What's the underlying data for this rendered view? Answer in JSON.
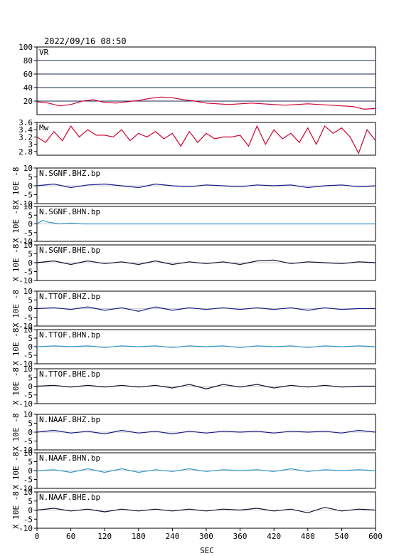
{
  "header": {
    "timestamp": "2022/09/16 08:50"
  },
  "chart_data": [
    {
      "type": "line",
      "panel_label": "VR",
      "ylim": [
        0,
        100
      ],
      "yticks": [
        20,
        40,
        60,
        80,
        100
      ],
      "grid_y": true,
      "color": "#cc0033",
      "x": [
        0,
        20,
        40,
        60,
        80,
        100,
        120,
        140,
        160,
        180,
        200,
        220,
        240,
        260,
        280,
        300,
        320,
        340,
        360,
        380,
        400,
        420,
        440,
        460,
        480,
        500,
        520,
        540,
        560,
        580,
        600
      ],
      "values": [
        19,
        17,
        13,
        15,
        20,
        22,
        18,
        17,
        19,
        21,
        24,
        26,
        25,
        22,
        20,
        17,
        16,
        15,
        16,
        17,
        16,
        15,
        14,
        15,
        16,
        15,
        14,
        13,
        12,
        8,
        9
      ]
    },
    {
      "type": "line",
      "panel_label": "Mw",
      "ylim": [
        2.7,
        3.6
      ],
      "yticks": [
        2.8,
        3.0,
        3.2,
        3.4,
        3.6
      ],
      "color": "#cc0033",
      "x": [
        0,
        15,
        30,
        45,
        60,
        75,
        90,
        105,
        120,
        135,
        150,
        165,
        180,
        195,
        210,
        225,
        240,
        255,
        270,
        285,
        300,
        315,
        330,
        345,
        360,
        375,
        390,
        405,
        420,
        435,
        450,
        465,
        480,
        495,
        510,
        525,
        540,
        555,
        570,
        585,
        600
      ],
      "values": [
        3.2,
        3.05,
        3.35,
        3.1,
        3.5,
        3.2,
        3.4,
        3.25,
        3.25,
        3.2,
        3.4,
        3.1,
        3.3,
        3.2,
        3.35,
        3.15,
        3.3,
        2.95,
        3.35,
        3.05,
        3.3,
        3.15,
        3.2,
        3.2,
        3.25,
        2.95,
        3.5,
        3.0,
        3.4,
        3.15,
        3.3,
        3.05,
        3.45,
        3.0,
        3.5,
        3.3,
        3.45,
        3.2,
        2.75,
        3.4,
        3.1
      ]
    },
    {
      "type": "line",
      "panel_label": "N.SGNF.BHZ.bp",
      "ylim": [
        -10,
        10
      ],
      "yticks": [
        -10,
        -5,
        0,
        5,
        10
      ],
      "color": "#1a1a8c",
      "x": [
        0,
        30,
        60,
        90,
        120,
        150,
        180,
        210,
        240,
        270,
        300,
        330,
        360,
        390,
        420,
        450,
        480,
        510,
        540,
        570,
        600
      ],
      "values": [
        0,
        1,
        -1,
        0.5,
        1,
        0,
        -1,
        1,
        0,
        -0.5,
        0.5,
        0,
        -0.5,
        0.5,
        0,
        0.5,
        -1,
        0,
        0.5,
        -0.5,
        0
      ]
    },
    {
      "type": "line",
      "panel_label": "N.SGNF.BHN.bp",
      "ylim": [
        -10,
        10
      ],
      "yticks": [
        -10,
        -5,
        0,
        5,
        10
      ],
      "color": "#3399cc",
      "x": [
        0,
        10,
        20,
        40,
        60,
        80,
        100,
        150,
        200,
        300,
        400,
        500,
        600
      ],
      "values": [
        0,
        2,
        1,
        0,
        0.5,
        0,
        0,
        0,
        0,
        0,
        0,
        0,
        0
      ]
    },
    {
      "type": "line",
      "panel_label": "N.SGNF.BHE.bp",
      "ylim": [
        -10,
        10
      ],
      "yticks": [
        -10,
        -5,
        0,
        5,
        10
      ],
      "color": "#111133",
      "x": [
        0,
        30,
        60,
        90,
        120,
        150,
        180,
        210,
        240,
        270,
        300,
        330,
        360,
        390,
        420,
        450,
        480,
        510,
        540,
        570,
        600
      ],
      "values": [
        0,
        1,
        -1,
        1,
        -0.5,
        0.5,
        -1,
        1,
        -1,
        0.5,
        -0.5,
        0.5,
        -1,
        1,
        1.5,
        -0.5,
        0.5,
        0,
        -0.5,
        0.5,
        0
      ]
    },
    {
      "type": "line",
      "panel_label": "N.TTOF.BHZ.bp",
      "ylim": [
        -10,
        10
      ],
      "yticks": [
        -10,
        -5,
        0,
        5,
        10
      ],
      "color": "#1a1a8c",
      "x": [
        0,
        30,
        60,
        90,
        120,
        150,
        180,
        210,
        240,
        270,
        300,
        330,
        360,
        390,
        420,
        450,
        480,
        510,
        540,
        570,
        600
      ],
      "values": [
        0,
        0.5,
        -0.5,
        1,
        -1,
        0.5,
        -1.5,
        1,
        -1,
        0.5,
        -0.5,
        0.5,
        -0.5,
        0.5,
        -0.5,
        0.5,
        -1,
        0.5,
        -0.5,
        0,
        0
      ]
    },
    {
      "type": "line",
      "panel_label": "N.TTOF.BHN.bp",
      "ylim": [
        -10,
        10
      ],
      "yticks": [
        -10,
        -5,
        0,
        5,
        10
      ],
      "color": "#3399cc",
      "x": [
        0,
        30,
        60,
        90,
        120,
        150,
        180,
        210,
        240,
        270,
        300,
        330,
        360,
        390,
        420,
        450,
        480,
        510,
        540,
        570,
        600
      ],
      "values": [
        0,
        0.5,
        0,
        0.5,
        -0.5,
        0.5,
        0,
        0.5,
        -0.5,
        0.5,
        0,
        0.5,
        -0.5,
        0.5,
        0,
        0.5,
        -0.5,
        0.5,
        0,
        0.5,
        0
      ]
    },
    {
      "type": "line",
      "panel_label": "N.TTOF.BHE.bp",
      "ylim": [
        -10,
        10
      ],
      "yticks": [
        -10,
        -5,
        0,
        5,
        10
      ],
      "color": "#111133",
      "x": [
        0,
        30,
        60,
        90,
        120,
        150,
        180,
        210,
        240,
        270,
        300,
        330,
        360,
        390,
        420,
        450,
        480,
        510,
        540,
        570,
        600
      ],
      "values": [
        0,
        0.5,
        -0.5,
        0.5,
        -0.5,
        0.5,
        -0.5,
        0.5,
        -1,
        1,
        -1.5,
        1,
        -0.5,
        1,
        -1,
        0.5,
        -0.5,
        0.5,
        -0.5,
        0,
        0
      ]
    },
    {
      "type": "line",
      "panel_label": "N.NAAF.BHZ.bp",
      "ylim": [
        -10,
        10
      ],
      "yticks": [
        -10,
        -5,
        0,
        5,
        10
      ],
      "color": "#1a1a8c",
      "x": [
        0,
        30,
        60,
        90,
        120,
        150,
        180,
        210,
        240,
        270,
        300,
        330,
        360,
        390,
        420,
        450,
        480,
        510,
        540,
        570,
        600
      ],
      "values": [
        0,
        1,
        -0.5,
        0.5,
        -1,
        1,
        -0.5,
        0.5,
        -1,
        0.5,
        -0.5,
        0.5,
        0,
        0.5,
        -0.5,
        0.5,
        0,
        0.5,
        -0.5,
        1,
        0
      ]
    },
    {
      "type": "line",
      "panel_label": "N.NAAF.BHN.bp",
      "ylim": [
        -10,
        10
      ],
      "yticks": [
        -10,
        -5,
        0,
        5,
        10
      ],
      "color": "#3399cc",
      "x": [
        0,
        30,
        60,
        90,
        120,
        150,
        180,
        210,
        240,
        270,
        300,
        330,
        360,
        390,
        420,
        450,
        480,
        510,
        540,
        570,
        600
      ],
      "values": [
        0,
        0.5,
        -1,
        1,
        -1,
        1,
        -1,
        0.5,
        -0.5,
        1,
        -0.5,
        0.5,
        0,
        0.5,
        -0.5,
        1,
        -0.5,
        0.5,
        0,
        0.5,
        0
      ]
    },
    {
      "type": "line",
      "panel_label": "N.NAAF.BHE.bp",
      "ylim": [
        -10,
        10
      ],
      "yticks": [
        -10,
        -5,
        0,
        5,
        10
      ],
      "color": "#111133",
      "x": [
        0,
        30,
        60,
        90,
        120,
        150,
        180,
        210,
        240,
        270,
        300,
        330,
        360,
        390,
        420,
        450,
        480,
        510,
        540,
        570,
        600
      ],
      "values": [
        0,
        1,
        -0.5,
        0.5,
        -1,
        0.5,
        -0.5,
        0.5,
        -0.5,
        0.5,
        -0.5,
        0.5,
        0,
        1,
        -0.5,
        0.5,
        -1.5,
        1.5,
        -0.5,
        0.5,
        0
      ]
    }
  ],
  "x_axis": {
    "label": "SEC",
    "range": [
      0,
      600
    ],
    "ticks": [
      0,
      60,
      120,
      180,
      240,
      300,
      360,
      420,
      480,
      540,
      600
    ]
  },
  "y_axis_unit": "X 10E -8"
}
